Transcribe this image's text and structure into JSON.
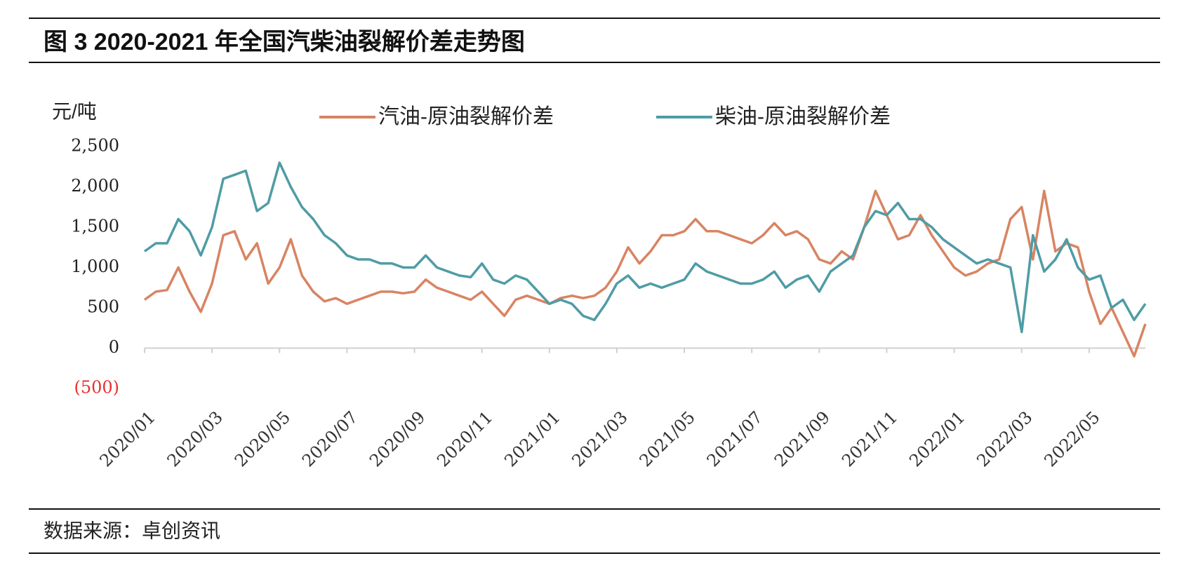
{
  "chart_data": {
    "type": "line",
    "title": "图 3 2020-2021 年全国汽柴油裂解价差走势图",
    "y_label": "元/吨",
    "source": "数据来源：卓创资讯",
    "categories": [
      "2020/01",
      null,
      null,
      null,
      null,
      null,
      "2020/03",
      null,
      null,
      null,
      null,
      null,
      "2020/05",
      null,
      null,
      null,
      null,
      null,
      "2020/07",
      null,
      null,
      null,
      null,
      null,
      "2020/09",
      null,
      null,
      null,
      null,
      null,
      "2020/11",
      null,
      null,
      null,
      null,
      null,
      "2021/01",
      null,
      null,
      null,
      null,
      null,
      "2021/03",
      null,
      null,
      null,
      null,
      null,
      "2021/05",
      null,
      null,
      null,
      null,
      null,
      "2021/07",
      null,
      null,
      null,
      null,
      null,
      "2021/09",
      null,
      null,
      null,
      null,
      null,
      "2021/11",
      null,
      null,
      null,
      null,
      null,
      "2022/01",
      null,
      null,
      null,
      null,
      null,
      "2022/03",
      null,
      null,
      null,
      null,
      null,
      "2022/05",
      null,
      null,
      null,
      null,
      null
    ],
    "series": [
      {
        "name": "汽油-原油裂解价差",
        "color": "#d88463",
        "values": [
          600,
          700,
          720,
          1000,
          700,
          450,
          800,
          1400,
          1450,
          1100,
          1300,
          800,
          1000,
          1350,
          900,
          700,
          580,
          620,
          550,
          600,
          650,
          700,
          700,
          680,
          700,
          850,
          750,
          700,
          650,
          600,
          700,
          550,
          400,
          600,
          650,
          600,
          550,
          620,
          650,
          620,
          650,
          750,
          950,
          1250,
          1050,
          1200,
          1400,
          1400,
          1450,
          1600,
          1450,
          1450,
          1400,
          1350,
          1300,
          1400,
          1550,
          1400,
          1450,
          1350,
          1100,
          1050,
          1200,
          1100,
          1500,
          1950,
          1650,
          1350,
          1400,
          1650,
          1400,
          1200,
          1000,
          900,
          950,
          1050,
          1100,
          1600,
          1750,
          1100,
          1950,
          1200,
          1300,
          1250,
          700,
          300,
          500,
          200,
          -100,
          300
        ]
      },
      {
        "name": "柴油-原油裂解价差",
        "color": "#4f9ca5",
        "values": [
          1200,
          1300,
          1300,
          1600,
          1450,
          1150,
          1500,
          2100,
          2150,
          2200,
          1700,
          1800,
          2300,
          2000,
          1750,
          1600,
          1400,
          1300,
          1150,
          1100,
          1100,
          1050,
          1050,
          1000,
          1000,
          1150,
          1000,
          950,
          900,
          880,
          1050,
          850,
          800,
          900,
          850,
          700,
          550,
          600,
          550,
          400,
          350,
          550,
          800,
          900,
          750,
          800,
          750,
          800,
          850,
          1050,
          950,
          900,
          850,
          800,
          800,
          850,
          950,
          750,
          850,
          900,
          700,
          950,
          1050,
          1150,
          1500,
          1700,
          1650,
          1800,
          1600,
          1600,
          1500,
          1350,
          1250,
          1150,
          1050,
          1100,
          1050,
          1000,
          200,
          1400,
          950,
          1100,
          1350,
          1000,
          850,
          900,
          500,
          600,
          350,
          550
        ]
      }
    ],
    "ylim": [
      -500,
      2500
    ],
    "yticks": [
      {
        "value": -500,
        "label": "(500)"
      },
      0,
      500,
      {
        "value": 1000,
        "label": "1,000"
      },
      {
        "value": 1500,
        "label": "1,500"
      },
      {
        "value": 2000,
        "label": "2,000"
      },
      {
        "value": 2500,
        "label": "2,500"
      }
    ],
    "grid": false
  }
}
